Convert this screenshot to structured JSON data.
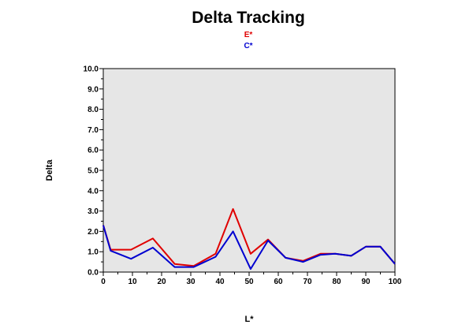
{
  "chart_data": {
    "type": "line",
    "title": "Delta Tracking",
    "xlabel": "L*",
    "ylabel": "Delta",
    "xlim": [
      0,
      100
    ],
    "ylim": [
      0,
      10
    ],
    "x_ticks": [
      "0",
      "10",
      "20",
      "30",
      "40",
      "50",
      "60",
      "70",
      "80",
      "90",
      "100"
    ],
    "y_ticks": [
      "0.0",
      "1.0",
      "2.0",
      "3.0",
      "4.0",
      "5.0",
      "6.0",
      "7.0",
      "8.0",
      "9.0",
      "10.0"
    ],
    "grid": false,
    "legend_position": "top-center",
    "plot_background": "#e6e6e6",
    "series": [
      {
        "name": "E*",
        "color": "#e00000",
        "x": [
          0,
          2.5,
          9.5,
          17,
          24.5,
          31,
          38.5,
          44.5,
          50.5,
          56.5,
          62.5,
          68.5,
          74.5,
          79.5,
          85,
          90,
          95,
          100
        ],
        "y": [
          2.3,
          1.1,
          1.1,
          1.65,
          0.4,
          0.3,
          0.9,
          3.1,
          0.9,
          1.6,
          0.7,
          0.55,
          0.9,
          0.9,
          0.8,
          1.25,
          1.25,
          0.4
        ]
      },
      {
        "name": "C*",
        "color": "#0000d0",
        "x": [
          0,
          2.5,
          9.5,
          17,
          24.5,
          31,
          38.5,
          44.5,
          50.5,
          56.5,
          62.5,
          68.5,
          74.5,
          79.5,
          85,
          90,
          95,
          100
        ],
        "y": [
          2.3,
          1.05,
          0.65,
          1.2,
          0.25,
          0.25,
          0.75,
          2.0,
          0.15,
          1.55,
          0.7,
          0.5,
          0.85,
          0.9,
          0.8,
          1.25,
          1.25,
          0.4
        ]
      }
    ]
  }
}
